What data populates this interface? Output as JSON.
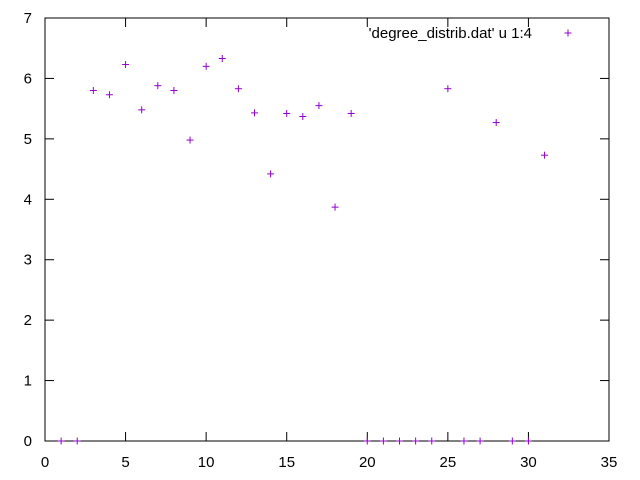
{
  "chart_data": {
    "type": "scatter",
    "title": "",
    "xlabel": "",
    "ylabel": "",
    "xlim": [
      0,
      35
    ],
    "ylim": [
      0,
      7
    ],
    "xticks": [
      0,
      5,
      10,
      15,
      20,
      25,
      30,
      35
    ],
    "yticks": [
      0,
      1,
      2,
      3,
      4,
      5,
      6,
      7
    ],
    "grid": false,
    "legend_position": "top-right",
    "series": [
      {
        "name": "'degree_distrib.dat' u 1:4",
        "color": "#9400d3",
        "marker": "plus",
        "points": [
          [
            1,
            0
          ],
          [
            2,
            0
          ],
          [
            3,
            5.8
          ],
          [
            4,
            5.73
          ],
          [
            5,
            6.23
          ],
          [
            6,
            5.48
          ],
          [
            7,
            5.88
          ],
          [
            8,
            5.8
          ],
          [
            9,
            4.98
          ],
          [
            10,
            6.2
          ],
          [
            11,
            6.33
          ],
          [
            12,
            5.83
          ],
          [
            13,
            5.43
          ],
          [
            14,
            4.42
          ],
          [
            15,
            5.42
          ],
          [
            16,
            5.37
          ],
          [
            17,
            5.55
          ],
          [
            18,
            3.87
          ],
          [
            19,
            5.42
          ],
          [
            20,
            0
          ],
          [
            21,
            0
          ],
          [
            22,
            0
          ],
          [
            23,
            0
          ],
          [
            24,
            0
          ],
          [
            25,
            5.83
          ],
          [
            26,
            0
          ],
          [
            27,
            0
          ],
          [
            28,
            5.27
          ],
          [
            29,
            0
          ],
          [
            30,
            0
          ],
          [
            31,
            4.73
          ]
        ]
      }
    ]
  }
}
